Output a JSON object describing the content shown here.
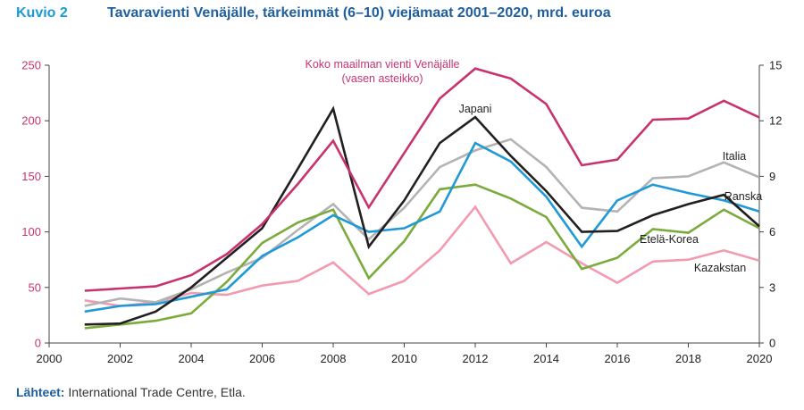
{
  "header": {
    "figure_number": "Kuvio 2",
    "title": "Tavaravienti Venäjälle, tärkeimmät (6–10) viejämaat 2001–2020, mrd. euroa"
  },
  "footer": {
    "source_label": "Lähteet:",
    "source_text": "International Trade Centre, Etla."
  },
  "colors": {
    "total": "#c8336f",
    "japani": "#231f20",
    "italia": "#b3b3b3",
    "ranska": "#1f9ad6",
    "etela_korea": "#7aab3c",
    "kazakstan": "#f29bb0",
    "left_axis": "#c8336f"
  },
  "chart_data": {
    "type": "line",
    "title": "Tavaravienti Venäjälle, tärkeimmät (6–10) viejämaat 2001–2020, mrd. euroa",
    "x": [
      2001,
      2002,
      2003,
      2004,
      2005,
      2006,
      2007,
      2008,
      2009,
      2010,
      2011,
      2012,
      2013,
      2014,
      2015,
      2016,
      2017,
      2018,
      2019,
      2020
    ],
    "xlim": [
      2000,
      2020
    ],
    "x_ticks": [
      "2000",
      "2002",
      "2004",
      "2006",
      "2008",
      "2010",
      "2012",
      "2014",
      "2016",
      "2018",
      "2020"
    ],
    "y_left": {
      "ylim": [
        0,
        250
      ],
      "ticks": [
        "0",
        "50",
        "100",
        "150",
        "200",
        "250"
      ]
    },
    "y_right": {
      "ylim": [
        0,
        15
      ],
      "ticks": [
        "0",
        "3",
        "6",
        "9",
        "12",
        "15"
      ]
    },
    "grid": false,
    "series": [
      {
        "name": "Koko maailman vienti Venäjälle (vasen asteikko)",
        "label_lines": [
          "Koko maailman vienti Venäjälle",
          "(vasen asteikko)"
        ],
        "axis": "left",
        "color": "#c8336f",
        "values": [
          47,
          49,
          51,
          61,
          80,
          107,
          143,
          182,
          122,
          171,
          220,
          247,
          238,
          215,
          160,
          165,
          201,
          202,
          218,
          203
        ]
      },
      {
        "name": "Japani",
        "axis": "right",
        "color": "#231f20",
        "values": [
          1.0,
          1.05,
          1.7,
          3.0,
          4.6,
          6.2,
          9.4,
          12.65,
          5.2,
          7.7,
          10.8,
          12.2,
          10.1,
          8.2,
          6.0,
          6.05,
          6.9,
          7.5,
          8.0,
          6.3
        ]
      },
      {
        "name": "Italia",
        "axis": "right",
        "color": "#b3b3b3",
        "values": [
          2.0,
          2.4,
          2.2,
          2.9,
          3.8,
          4.6,
          6.1,
          7.5,
          5.6,
          7.3,
          9.5,
          10.4,
          11.0,
          9.5,
          7.3,
          7.1,
          8.9,
          9.0,
          9.75,
          8.95
        ]
      },
      {
        "name": "Ranska",
        "axis": "right",
        "color": "#1f9ad6",
        "values": [
          1.7,
          2.0,
          2.1,
          2.5,
          2.9,
          4.7,
          5.7,
          6.9,
          6.0,
          6.2,
          7.1,
          10.8,
          9.8,
          7.9,
          5.2,
          7.7,
          8.55,
          8.1,
          7.7,
          7.1
        ]
      },
      {
        "name": "Etelä-Korea",
        "axis": "right",
        "color": "#7aab3c",
        "values": [
          0.8,
          1.0,
          1.2,
          1.6,
          3.3,
          5.4,
          6.5,
          7.2,
          3.5,
          5.5,
          8.3,
          8.55,
          7.8,
          6.8,
          4.0,
          4.6,
          6.15,
          5.95,
          7.2,
          6.2
        ]
      },
      {
        "name": "Kazakstan",
        "axis": "right",
        "color": "#f29bb0",
        "values": [
          2.3,
          2.0,
          2.2,
          2.7,
          2.6,
          3.1,
          3.35,
          4.35,
          2.65,
          3.35,
          5.0,
          7.35,
          4.3,
          5.45,
          4.3,
          3.25,
          4.4,
          4.5,
          5.0,
          4.45
        ]
      }
    ]
  }
}
